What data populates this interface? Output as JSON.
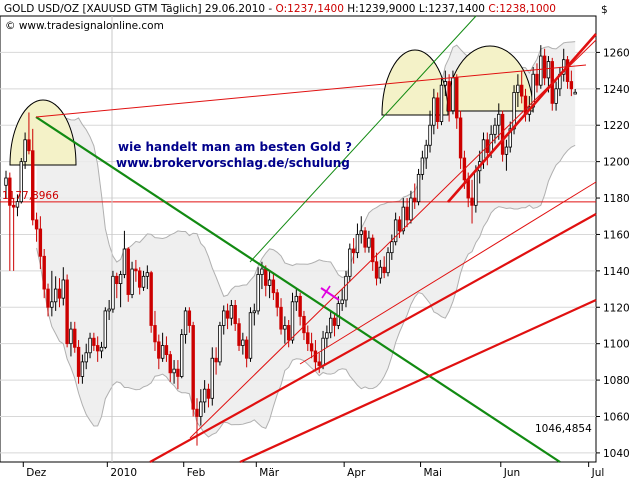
{
  "header": {
    "part1": "GOLD USD/OZ [XAUUSD GTM  Täglich] 29.06.2010 - ",
    "o": "O:1237,1400",
    "h": " H:1239,9000",
    "l": " L:1237,1400",
    "c": " C:1238,1000",
    "source": "© www.tradesignalonline.com",
    "currency": "$"
  },
  "annotation": {
    "line1": "wie handelt man am besten Gold ?",
    "line2": "www.brokervorschlag.de/schulung"
  },
  "colors": {
    "bull": "#000000",
    "bear": "#cc0000",
    "trend_green": "#128a12",
    "trend_red": "#e01010",
    "band": "#b0b0b0",
    "band_fill": "#ececec",
    "arc_fill": "#f4f2c8",
    "annotation_text": "#00008b",
    "grid": "#d8d8d8"
  },
  "chart_data": {
    "type": "candlestick",
    "title": "GOLD USD/OZ [XAUUSD GTM  Täglich] 29.06.2010",
    "ylim": [
      1035,
      1280
    ],
    "y_ticks": [
      1040,
      1060,
      1080,
      1100,
      1120,
      1140,
      1160,
      1180,
      1200,
      1220,
      1240,
      1260
    ],
    "x_labels": [
      "Dez",
      "2010",
      "Feb",
      "Mär",
      "Apr",
      "Mai",
      "Jun",
      "Jul"
    ],
    "grid": "horizontal",
    "last_price": 1238.1,
    "annotations": {
      "support_label": "1177,8966",
      "support_level": 1177.9,
      "low_label": "1046,4854",
      "low_level": 1046.5
    },
    "candles": [
      {
        "date": "2009-11-25",
        "o": 1187,
        "h": 1195,
        "l": 1180,
        "c": 1191
      },
      {
        "date": "2009-11-26",
        "o": 1191,
        "h": 1194,
        "l": 1140,
        "c": 1176
      },
      {
        "date": "2009-11-27",
        "o": 1176,
        "h": 1180,
        "l": 1140,
        "c": 1175
      },
      {
        "date": "2009-11-30",
        "o": 1175,
        "h": 1182,
        "l": 1170,
        "c": 1178
      },
      {
        "date": "2009-12-01",
        "o": 1178,
        "h": 1202,
        "l": 1177,
        "c": 1200
      },
      {
        "date": "2009-12-02",
        "o": 1200,
        "h": 1216,
        "l": 1196,
        "c": 1212
      },
      {
        "date": "2009-12-03",
        "o": 1212,
        "h": 1227,
        "l": 1204,
        "c": 1206
      },
      {
        "date": "2009-12-04",
        "o": 1206,
        "h": 1218,
        "l": 1165,
        "c": 1168
      },
      {
        "date": "2009-12-07",
        "o": 1168,
        "h": 1172,
        "l": 1156,
        "c": 1163
      },
      {
        "date": "2009-12-08",
        "o": 1163,
        "h": 1170,
        "l": 1141,
        "c": 1148
      },
      {
        "date": "2009-12-09",
        "o": 1148,
        "h": 1152,
        "l": 1125,
        "c": 1130
      },
      {
        "date": "2009-12-10",
        "o": 1130,
        "h": 1133,
        "l": 1115,
        "c": 1120
      },
      {
        "date": "2009-12-11",
        "o": 1120,
        "h": 1140,
        "l": 1115,
        "c": 1123
      },
      {
        "date": "2009-12-14",
        "o": 1123,
        "h": 1137,
        "l": 1118,
        "c": 1130
      },
      {
        "date": "2009-12-15",
        "o": 1130,
        "h": 1136,
        "l": 1120,
        "c": 1125
      },
      {
        "date": "2009-12-16",
        "o": 1125,
        "h": 1142,
        "l": 1121,
        "c": 1135
      },
      {
        "date": "2009-12-17",
        "o": 1135,
        "h": 1138,
        "l": 1098,
        "c": 1100
      },
      {
        "date": "2009-12-18",
        "o": 1100,
        "h": 1112,
        "l": 1093,
        "c": 1108
      },
      {
        "date": "2009-12-21",
        "o": 1108,
        "h": 1112,
        "l": 1095,
        "c": 1098
      },
      {
        "date": "2009-12-22",
        "o": 1098,
        "h": 1102,
        "l": 1078,
        "c": 1082
      },
      {
        "date": "2009-12-23",
        "o": 1082,
        "h": 1094,
        "l": 1078,
        "c": 1090
      },
      {
        "date": "2009-12-24",
        "o": 1090,
        "h": 1100,
        "l": 1086,
        "c": 1095
      },
      {
        "date": "2009-12-28",
        "o": 1095,
        "h": 1106,
        "l": 1092,
        "c": 1103
      },
      {
        "date": "2009-12-29",
        "o": 1103,
        "h": 1106,
        "l": 1096,
        "c": 1099
      },
      {
        "date": "2009-12-30",
        "o": 1099,
        "h": 1104,
        "l": 1090,
        "c": 1096
      },
      {
        "date": "2009-12-31",
        "o": 1096,
        "h": 1101,
        "l": 1092,
        "c": 1098
      },
      {
        "date": "2010-01-04",
        "o": 1098,
        "h": 1120,
        "l": 1097,
        "c": 1118
      },
      {
        "date": "2010-01-05",
        "o": 1118,
        "h": 1124,
        "l": 1113,
        "c": 1119
      },
      {
        "date": "2010-01-06",
        "o": 1119,
        "h": 1140,
        "l": 1117,
        "c": 1137
      },
      {
        "date": "2010-01-07",
        "o": 1137,
        "h": 1139,
        "l": 1125,
        "c": 1133
      },
      {
        "date": "2010-01-08",
        "o": 1133,
        "h": 1140,
        "l": 1120,
        "c": 1138
      },
      {
        "date": "2010-01-11",
        "o": 1138,
        "h": 1162,
        "l": 1136,
        "c": 1152
      },
      {
        "date": "2010-01-12",
        "o": 1152,
        "h": 1153,
        "l": 1123,
        "c": 1127
      },
      {
        "date": "2010-01-13",
        "o": 1127,
        "h": 1145,
        "l": 1125,
        "c": 1141
      },
      {
        "date": "2010-01-14",
        "o": 1141,
        "h": 1146,
        "l": 1134,
        "c": 1140
      },
      {
        "date": "2010-01-15",
        "o": 1140,
        "h": 1142,
        "l": 1127,
        "c": 1131
      },
      {
        "date": "2010-01-18",
        "o": 1131,
        "h": 1140,
        "l": 1129,
        "c": 1137
      },
      {
        "date": "2010-01-19",
        "o": 1137,
        "h": 1143,
        "l": 1130,
        "c": 1139
      },
      {
        "date": "2010-01-20",
        "o": 1139,
        "h": 1140,
        "l": 1106,
        "c": 1110
      },
      {
        "date": "2010-01-21",
        "o": 1110,
        "h": 1118,
        "l": 1096,
        "c": 1101
      },
      {
        "date": "2010-01-22",
        "o": 1101,
        "h": 1105,
        "l": 1086,
        "c": 1092
      },
      {
        "date": "2010-01-25",
        "o": 1092,
        "h": 1106,
        "l": 1090,
        "c": 1099
      },
      {
        "date": "2010-01-26",
        "o": 1099,
        "h": 1104,
        "l": 1090,
        "c": 1094
      },
      {
        "date": "2010-01-27",
        "o": 1094,
        "h": 1096,
        "l": 1079,
        "c": 1084
      },
      {
        "date": "2010-01-28",
        "o": 1084,
        "h": 1091,
        "l": 1078,
        "c": 1086
      },
      {
        "date": "2010-01-29",
        "o": 1086,
        "h": 1091,
        "l": 1075,
        "c": 1082
      },
      {
        "date": "2010-02-01",
        "o": 1082,
        "h": 1108,
        "l": 1081,
        "c": 1105
      },
      {
        "date": "2010-02-02",
        "o": 1105,
        "h": 1120,
        "l": 1100,
        "c": 1118
      },
      {
        "date": "2010-02-03",
        "o": 1118,
        "h": 1120,
        "l": 1106,
        "c": 1110
      },
      {
        "date": "2010-02-04",
        "o": 1110,
        "h": 1112,
        "l": 1060,
        "c": 1064
      },
      {
        "date": "2010-02-05",
        "o": 1064,
        "h": 1070,
        "l": 1044,
        "c": 1060
      },
      {
        "date": "2010-02-08",
        "o": 1060,
        "h": 1075,
        "l": 1055,
        "c": 1068
      },
      {
        "date": "2010-02-09",
        "o": 1068,
        "h": 1080,
        "l": 1062,
        "c": 1075
      },
      {
        "date": "2010-02-10",
        "o": 1075,
        "h": 1078,
        "l": 1065,
        "c": 1070
      },
      {
        "date": "2010-02-11",
        "o": 1070,
        "h": 1098,
        "l": 1066,
        "c": 1092
      },
      {
        "date": "2010-02-12",
        "o": 1092,
        "h": 1098,
        "l": 1083,
        "c": 1090
      },
      {
        "date": "2010-02-16",
        "o": 1090,
        "h": 1112,
        "l": 1088,
        "c": 1110
      },
      {
        "date": "2010-02-17",
        "o": 1110,
        "h": 1121,
        "l": 1105,
        "c": 1118
      },
      {
        "date": "2010-02-18",
        "o": 1118,
        "h": 1122,
        "l": 1108,
        "c": 1114
      },
      {
        "date": "2010-02-19",
        "o": 1114,
        "h": 1124,
        "l": 1110,
        "c": 1121
      },
      {
        "date": "2010-02-22",
        "o": 1121,
        "h": 1124,
        "l": 1107,
        "c": 1111
      },
      {
        "date": "2010-02-23",
        "o": 1111,
        "h": 1114,
        "l": 1096,
        "c": 1099
      },
      {
        "date": "2010-02-24",
        "o": 1099,
        "h": 1106,
        "l": 1094,
        "c": 1102
      },
      {
        "date": "2010-02-25",
        "o": 1102,
        "h": 1104,
        "l": 1087,
        "c": 1092
      },
      {
        "date": "2010-02-26",
        "o": 1092,
        "h": 1120,
        "l": 1090,
        "c": 1117
      },
      {
        "date": "2010-03-01",
        "o": 1117,
        "h": 1122,
        "l": 1110,
        "c": 1118
      },
      {
        "date": "2010-03-02",
        "o": 1118,
        "h": 1142,
        "l": 1116,
        "c": 1138
      },
      {
        "date": "2010-03-03",
        "o": 1138,
        "h": 1145,
        "l": 1130,
        "c": 1141
      },
      {
        "date": "2010-03-04",
        "o": 1141,
        "h": 1143,
        "l": 1126,
        "c": 1132
      },
      {
        "date": "2010-03-05",
        "o": 1132,
        "h": 1140,
        "l": 1125,
        "c": 1135
      },
      {
        "date": "2010-03-08",
        "o": 1135,
        "h": 1139,
        "l": 1124,
        "c": 1128
      },
      {
        "date": "2010-03-09",
        "o": 1128,
        "h": 1130,
        "l": 1115,
        "c": 1120
      },
      {
        "date": "2010-03-10",
        "o": 1120,
        "h": 1125,
        "l": 1105,
        "c": 1108
      },
      {
        "date": "2010-03-11",
        "o": 1108,
        "h": 1115,
        "l": 1100,
        "c": 1110
      },
      {
        "date": "2010-03-12",
        "o": 1110,
        "h": 1113,
        "l": 1098,
        "c": 1102
      },
      {
        "date": "2010-03-15",
        "o": 1102,
        "h": 1128,
        "l": 1100,
        "c": 1123
      },
      {
        "date": "2010-03-16",
        "o": 1123,
        "h": 1130,
        "l": 1118,
        "c": 1126
      },
      {
        "date": "2010-03-17",
        "o": 1126,
        "h": 1128,
        "l": 1110,
        "c": 1115
      },
      {
        "date": "2010-03-18",
        "o": 1115,
        "h": 1118,
        "l": 1102,
        "c": 1106
      },
      {
        "date": "2010-03-19",
        "o": 1106,
        "h": 1110,
        "l": 1096,
        "c": 1100
      },
      {
        "date": "2010-03-22",
        "o": 1100,
        "h": 1106,
        "l": 1092,
        "c": 1096
      },
      {
        "date": "2010-03-23",
        "o": 1096,
        "h": 1102,
        "l": 1086,
        "c": 1090
      },
      {
        "date": "2010-03-24",
        "o": 1090,
        "h": 1095,
        "l": 1084,
        "c": 1088
      },
      {
        "date": "2010-03-25",
        "o": 1088,
        "h": 1107,
        "l": 1086,
        "c": 1103
      },
      {
        "date": "2010-03-26",
        "o": 1103,
        "h": 1110,
        "l": 1098,
        "c": 1106
      },
      {
        "date": "2010-03-29",
        "o": 1106,
        "h": 1118,
        "l": 1103,
        "c": 1114
      },
      {
        "date": "2010-03-30",
        "o": 1114,
        "h": 1116,
        "l": 1104,
        "c": 1110
      },
      {
        "date": "2010-03-31",
        "o": 1110,
        "h": 1126,
        "l": 1108,
        "c": 1122
      },
      {
        "date": "2010-04-01",
        "o": 1122,
        "h": 1130,
        "l": 1118,
        "c": 1124
      },
      {
        "date": "2010-04-06",
        "o": 1124,
        "h": 1140,
        "l": 1120,
        "c": 1137
      },
      {
        "date": "2010-04-07",
        "o": 1137,
        "h": 1155,
        "l": 1134,
        "c": 1152
      },
      {
        "date": "2010-04-08",
        "o": 1152,
        "h": 1158,
        "l": 1144,
        "c": 1150
      },
      {
        "date": "2010-04-09",
        "o": 1150,
        "h": 1166,
        "l": 1147,
        "c": 1160
      },
      {
        "date": "2010-04-12",
        "o": 1160,
        "h": 1170,
        "l": 1155,
        "c": 1162
      },
      {
        "date": "2010-04-13",
        "o": 1162,
        "h": 1164,
        "l": 1150,
        "c": 1153
      },
      {
        "date": "2010-04-14",
        "o": 1153,
        "h": 1162,
        "l": 1150,
        "c": 1158
      },
      {
        "date": "2010-04-15",
        "o": 1158,
        "h": 1160,
        "l": 1140,
        "c": 1145
      },
      {
        "date": "2010-04-16",
        "o": 1145,
        "h": 1150,
        "l": 1132,
        "c": 1136
      },
      {
        "date": "2010-04-19",
        "o": 1136,
        "h": 1146,
        "l": 1133,
        "c": 1142
      },
      {
        "date": "2010-04-20",
        "o": 1142,
        "h": 1148,
        "l": 1136,
        "c": 1139
      },
      {
        "date": "2010-04-21",
        "o": 1139,
        "h": 1153,
        "l": 1137,
        "c": 1150
      },
      {
        "date": "2010-04-22",
        "o": 1150,
        "h": 1160,
        "l": 1146,
        "c": 1156
      },
      {
        "date": "2010-04-23",
        "o": 1156,
        "h": 1172,
        "l": 1154,
        "c": 1168
      },
      {
        "date": "2010-04-26",
        "o": 1168,
        "h": 1170,
        "l": 1158,
        "c": 1162
      },
      {
        "date": "2010-04-27",
        "o": 1162,
        "h": 1180,
        "l": 1160,
        "c": 1175
      },
      {
        "date": "2010-04-28",
        "o": 1175,
        "h": 1180,
        "l": 1164,
        "c": 1168
      },
      {
        "date": "2010-04-29",
        "o": 1168,
        "h": 1184,
        "l": 1166,
        "c": 1180
      },
      {
        "date": "2010-04-30",
        "o": 1180,
        "h": 1188,
        "l": 1174,
        "c": 1178
      },
      {
        "date": "2010-05-03",
        "o": 1178,
        "h": 1196,
        "l": 1176,
        "c": 1193
      },
      {
        "date": "2010-05-04",
        "o": 1193,
        "h": 1206,
        "l": 1190,
        "c": 1202
      },
      {
        "date": "2010-05-05",
        "o": 1202,
        "h": 1212,
        "l": 1196,
        "c": 1209
      },
      {
        "date": "2010-05-06",
        "o": 1209,
        "h": 1228,
        "l": 1205,
        "c": 1220
      },
      {
        "date": "2010-05-07",
        "o": 1220,
        "h": 1240,
        "l": 1215,
        "c": 1235
      },
      {
        "date": "2010-05-10",
        "o": 1235,
        "h": 1238,
        "l": 1218,
        "c": 1222
      },
      {
        "date": "2010-05-11",
        "o": 1222,
        "h": 1246,
        "l": 1220,
        "c": 1242
      },
      {
        "date": "2010-05-12",
        "o": 1242,
        "h": 1250,
        "l": 1236,
        "c": 1244
      },
      {
        "date": "2010-05-13",
        "o": 1244,
        "h": 1248,
        "l": 1222,
        "c": 1228
      },
      {
        "date": "2010-05-14",
        "o": 1228,
        "h": 1250,
        "l": 1226,
        "c": 1246
      },
      {
        "date": "2010-05-17",
        "o": 1246,
        "h": 1248,
        "l": 1218,
        "c": 1224
      },
      {
        "date": "2010-05-18",
        "o": 1224,
        "h": 1228,
        "l": 1196,
        "c": 1202
      },
      {
        "date": "2010-05-19",
        "o": 1202,
        "h": 1206,
        "l": 1185,
        "c": 1190
      },
      {
        "date": "2010-05-20",
        "o": 1190,
        "h": 1194,
        "l": 1175,
        "c": 1180
      },
      {
        "date": "2010-05-21",
        "o": 1180,
        "h": 1190,
        "l": 1166,
        "c": 1176
      },
      {
        "date": "2010-05-24",
        "o": 1176,
        "h": 1198,
        "l": 1172,
        "c": 1195
      },
      {
        "date": "2010-05-25",
        "o": 1195,
        "h": 1206,
        "l": 1188,
        "c": 1200
      },
      {
        "date": "2010-05-26",
        "o": 1200,
        "h": 1216,
        "l": 1196,
        "c": 1212
      },
      {
        "date": "2010-05-27",
        "o": 1212,
        "h": 1216,
        "l": 1198,
        "c": 1205
      },
      {
        "date": "2010-05-28",
        "o": 1205,
        "h": 1220,
        "l": 1202,
        "c": 1215
      },
      {
        "date": "2010-05-31",
        "o": 1215,
        "h": 1224,
        "l": 1210,
        "c": 1220
      },
      {
        "date": "2010-06-01",
        "o": 1220,
        "h": 1232,
        "l": 1212,
        "c": 1226
      },
      {
        "date": "2010-06-02",
        "o": 1226,
        "h": 1228,
        "l": 1200,
        "c": 1204
      },
      {
        "date": "2010-06-03",
        "o": 1204,
        "h": 1212,
        "l": 1195,
        "c": 1208
      },
      {
        "date": "2010-06-04",
        "o": 1208,
        "h": 1222,
        "l": 1205,
        "c": 1218
      },
      {
        "date": "2010-06-07",
        "o": 1218,
        "h": 1242,
        "l": 1215,
        "c": 1238
      },
      {
        "date": "2010-06-08",
        "o": 1238,
        "h": 1248,
        "l": 1230,
        "c": 1242
      },
      {
        "date": "2010-06-09",
        "o": 1242,
        "h": 1250,
        "l": 1232,
        "c": 1236
      },
      {
        "date": "2010-06-10",
        "o": 1236,
        "h": 1240,
        "l": 1222,
        "c": 1226
      },
      {
        "date": "2010-06-11",
        "o": 1226,
        "h": 1236,
        "l": 1222,
        "c": 1230
      },
      {
        "date": "2010-06-14",
        "o": 1230,
        "h": 1252,
        "l": 1227,
        "c": 1248
      },
      {
        "date": "2010-06-15",
        "o": 1248,
        "h": 1254,
        "l": 1238,
        "c": 1242
      },
      {
        "date": "2010-06-16",
        "o": 1242,
        "h": 1264,
        "l": 1240,
        "c": 1258
      },
      {
        "date": "2010-06-17",
        "o": 1258,
        "h": 1262,
        "l": 1242,
        "c": 1246
      },
      {
        "date": "2010-06-18",
        "o": 1246,
        "h": 1258,
        "l": 1238,
        "c": 1255
      },
      {
        "date": "2010-06-21",
        "o": 1255,
        "h": 1257,
        "l": 1228,
        "c": 1232
      },
      {
        "date": "2010-06-22",
        "o": 1232,
        "h": 1244,
        "l": 1228,
        "c": 1240
      },
      {
        "date": "2010-06-23",
        "o": 1240,
        "h": 1252,
        "l": 1236,
        "c": 1248
      },
      {
        "date": "2010-06-24",
        "o": 1248,
        "h": 1262,
        "l": 1244,
        "c": 1256
      },
      {
        "date": "2010-06-25",
        "o": 1256,
        "h": 1258,
        "l": 1240,
        "c": 1244
      },
      {
        "date": "2010-06-28",
        "o": 1244,
        "h": 1250,
        "l": 1236,
        "c": 1240
      },
      {
        "date": "2010-06-29",
        "o": 1237.14,
        "h": 1239.9,
        "l": 1237.14,
        "c": 1238.1
      }
    ]
  }
}
